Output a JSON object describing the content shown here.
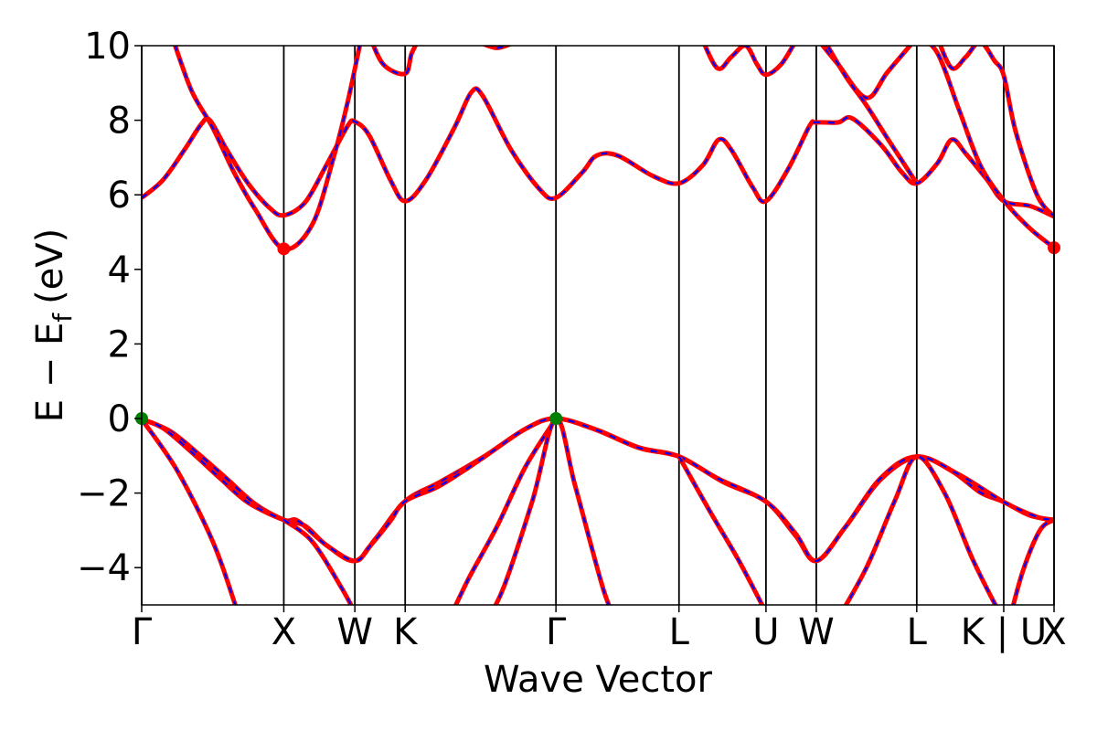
{
  "chart_data": {
    "type": "line",
    "title": "",
    "xlabel": "Wave Vector",
    "ylabel": "E − E",
    "ylabel_subscript": "f",
    "ylabel_unit": "(eV)",
    "ylim": [
      -5,
      10
    ],
    "yticks": [
      10,
      8,
      6,
      4,
      2,
      0,
      -2,
      -4
    ],
    "ytick_labels": [
      "10",
      "8",
      "6",
      "4",
      "2",
      "0",
      "−2",
      "−4"
    ],
    "kpath": [
      {
        "label": "Γ",
        "x": 0.0
      },
      {
        "label": "X",
        "x": 1.0
      },
      {
        "label": "W",
        "x": 1.5
      },
      {
        "label": "K",
        "x": 1.854
      },
      {
        "label": "Γ",
        "x": 2.915
      },
      {
        "label": "L",
        "x": 3.781
      },
      {
        "label": "U",
        "x": 4.393
      },
      {
        "label": "W",
        "x": 4.747
      },
      {
        "label": "L",
        "x": 5.454
      },
      {
        "label": "K | U",
        "x": 6.066
      },
      {
        "label": "X",
        "x": 6.42
      }
    ],
    "xlim": [
      0,
      6.42
    ],
    "colors": {
      "line": "#ff0000",
      "dash": "#0000ff",
      "cbm": "#ff0000",
      "vbm": "#008000",
      "axis": "#000000"
    },
    "series": [
      {
        "points": [
          [
            0.0,
            -0.02
          ],
          [
            0.2,
            -0.34
          ],
          [
            0.4,
            -0.95
          ],
          [
            0.6,
            -1.62
          ],
          [
            0.8,
            -2.3
          ],
          [
            1.0,
            -2.72
          ],
          [
            1.15,
            -2.88
          ],
          [
            1.3,
            -3.4
          ],
          [
            1.5,
            -3.82
          ],
          [
            1.65,
            -3.2
          ],
          [
            1.854,
            -2.22
          ],
          [
            2.1,
            -1.7
          ],
          [
            2.4,
            -1.04
          ],
          [
            2.7,
            -0.28
          ],
          [
            2.915,
            0.0
          ],
          [
            3.2,
            -0.3
          ],
          [
            3.5,
            -0.78
          ],
          [
            3.781,
            -1.02
          ],
          [
            4.1,
            -1.72
          ],
          [
            4.393,
            -2.23
          ],
          [
            4.6,
            -3.14
          ],
          [
            4.747,
            -3.82
          ],
          [
            4.95,
            -2.92
          ],
          [
            5.2,
            -1.64
          ],
          [
            5.454,
            -1.03
          ],
          [
            5.7,
            -1.41
          ],
          [
            5.9,
            -1.98
          ],
          [
            6.066,
            -2.24
          ],
          [
            6.25,
            -2.6
          ],
          [
            6.42,
            -2.72
          ]
        ]
      },
      {
        "points": [
          [
            0.0,
            -0.02
          ],
          [
            0.15,
            -0.26
          ],
          [
            0.35,
            -0.9
          ],
          [
            0.55,
            -1.6
          ],
          [
            0.75,
            -2.26
          ],
          [
            1.0,
            -2.72
          ],
          [
            1.1,
            -2.75
          ],
          [
            1.3,
            -3.4
          ],
          [
            1.5,
            -3.82
          ],
          [
            1.6,
            -3.45
          ],
          [
            1.75,
            -2.75
          ],
          [
            1.854,
            -2.22
          ],
          [
            2.1,
            -1.8
          ],
          [
            2.4,
            -1.06
          ],
          [
            2.7,
            -0.28
          ],
          [
            2.915,
            0.0
          ],
          [
            3.2,
            -0.31
          ],
          [
            3.5,
            -0.79
          ],
          [
            3.781,
            -1.02
          ],
          [
            4.05,
            -1.6
          ],
          [
            4.393,
            -2.23
          ],
          [
            4.6,
            -3.08
          ],
          [
            4.747,
            -3.82
          ],
          [
            4.95,
            -2.92
          ],
          [
            5.2,
            -1.6
          ],
          [
            5.454,
            -1.02
          ],
          [
            5.75,
            -1.5
          ],
          [
            6.066,
            -2.24
          ],
          [
            6.3,
            -2.64
          ],
          [
            6.42,
            -2.72
          ]
        ]
      },
      {
        "points": [
          [
            0.0,
            -0.02
          ],
          [
            0.25,
            -1.4
          ],
          [
            0.5,
            -3.3
          ],
          [
            0.65,
            -4.9
          ],
          [
            0.7,
            -5.5
          ]
        ]
      },
      {
        "points": [
          [
            1.0,
            -2.72
          ],
          [
            1.2,
            -3.3
          ],
          [
            1.4,
            -4.5
          ],
          [
            1.5,
            -5.2
          ]
        ]
      },
      {
        "points": [
          [
            2.15,
            -5.5
          ],
          [
            2.3,
            -4.3
          ],
          [
            2.5,
            -2.9
          ],
          [
            2.7,
            -1.3
          ],
          [
            2.915,
            0.0
          ]
        ]
      },
      {
        "points": [
          [
            2.42,
            -5.5
          ],
          [
            2.55,
            -4.5
          ],
          [
            2.75,
            -2.2
          ],
          [
            2.915,
            0.0
          ],
          [
            3.05,
            -1.8
          ],
          [
            3.25,
            -4.6
          ],
          [
            3.35,
            -5.5
          ]
        ]
      },
      {
        "points": [
          [
            3.781,
            -1.02
          ],
          [
            4.0,
            -2.5
          ],
          [
            4.2,
            -3.8
          ],
          [
            4.393,
            -5.2
          ]
        ]
      },
      {
        "points": [
          [
            4.88,
            -5.5
          ],
          [
            5.1,
            -4.0
          ],
          [
            5.3,
            -2.2
          ],
          [
            5.454,
            -1.02
          ],
          [
            5.65,
            -2.0
          ],
          [
            5.85,
            -3.8
          ],
          [
            6.05,
            -5.3
          ],
          [
            6.1,
            -5.5
          ]
        ]
      },
      {
        "points": [
          [
            6.1,
            -5.5
          ],
          [
            6.2,
            -4.1
          ],
          [
            6.32,
            -3.0
          ],
          [
            6.42,
            -2.72
          ]
        ]
      },
      {
        "points": [
          [
            0.0,
            5.92
          ],
          [
            0.15,
            6.4
          ],
          [
            0.3,
            7.2
          ],
          [
            0.42,
            7.9
          ],
          [
            0.48,
            8.0
          ],
          [
            0.6,
            7.2
          ],
          [
            0.75,
            6.3
          ],
          [
            0.9,
            5.65
          ],
          [
            1.0,
            5.45
          ],
          [
            1.15,
            5.8
          ],
          [
            1.3,
            6.8
          ],
          [
            1.45,
            7.85
          ],
          [
            1.5,
            7.96
          ],
          [
            1.6,
            7.6
          ],
          [
            1.75,
            6.4
          ],
          [
            1.854,
            5.83
          ],
          [
            2.0,
            6.4
          ],
          [
            2.2,
            7.8
          ],
          [
            2.32,
            8.75
          ],
          [
            2.4,
            8.65
          ],
          [
            2.6,
            7.2
          ],
          [
            2.8,
            6.15
          ],
          [
            2.915,
            5.92
          ],
          [
            3.1,
            6.6
          ],
          [
            3.2,
            7.05
          ],
          [
            3.35,
            7.05
          ],
          [
            3.6,
            6.5
          ],
          [
            3.781,
            6.31
          ],
          [
            3.95,
            6.8
          ],
          [
            4.06,
            7.48
          ],
          [
            4.15,
            7.2
          ],
          [
            4.3,
            6.2
          ],
          [
            4.393,
            5.83
          ],
          [
            4.55,
            6.7
          ],
          [
            4.7,
            7.85
          ],
          [
            4.747,
            7.94
          ],
          [
            4.9,
            7.94
          ],
          [
            5.0,
            8.05
          ],
          [
            5.2,
            7.35
          ],
          [
            5.35,
            6.6
          ],
          [
            5.454,
            6.31
          ],
          [
            5.6,
            6.85
          ],
          [
            5.7,
            7.48
          ],
          [
            5.8,
            7.1
          ],
          [
            5.95,
            6.4
          ],
          [
            6.066,
            5.83
          ],
          [
            6.25,
            5.7
          ],
          [
            6.42,
            5.42
          ]
        ]
      },
      {
        "points": [
          [
            0.2,
            10.4
          ],
          [
            0.35,
            8.8
          ],
          [
            0.5,
            7.8
          ],
          [
            0.65,
            6.6
          ],
          [
            0.8,
            5.6
          ],
          [
            1.0,
            4.55
          ],
          [
            1.2,
            5.2
          ],
          [
            1.35,
            7.0
          ],
          [
            1.45,
            8.5
          ],
          [
            1.55,
            10.3
          ]
        ]
      },
      {
        "points": [
          [
            1.6,
            10.3
          ],
          [
            1.7,
            9.5
          ],
          [
            1.854,
            9.25
          ],
          [
            1.9,
            9.8
          ],
          [
            1.97,
            10.3
          ]
        ]
      },
      {
        "points": [
          [
            2.4,
            10.05
          ],
          [
            2.5,
            9.94
          ],
          [
            2.6,
            10.05
          ]
        ]
      },
      {
        "points": [
          [
            3.93,
            10.3
          ],
          [
            4.05,
            9.4
          ],
          [
            4.15,
            9.7
          ],
          [
            4.25,
            10.0
          ],
          [
            4.33,
            9.5
          ],
          [
            4.393,
            9.22
          ],
          [
            4.5,
            9.5
          ],
          [
            4.6,
            10.1
          ],
          [
            4.65,
            10.3
          ]
        ]
      },
      {
        "points": [
          [
            4.75,
            10.2
          ],
          [
            4.9,
            9.5
          ],
          [
            5.1,
            8.6
          ],
          [
            5.25,
            9.3
          ],
          [
            5.454,
            10.2
          ],
          [
            5.5,
            10.3
          ]
        ]
      },
      {
        "points": [
          [
            4.78,
            10.3
          ],
          [
            4.95,
            9.2
          ],
          [
            5.1,
            8.4
          ],
          [
            5.25,
            7.5
          ],
          [
            5.454,
            6.31
          ]
        ]
      },
      {
        "points": [
          [
            5.6,
            10.2
          ],
          [
            5.7,
            9.4
          ],
          [
            5.8,
            9.7
          ],
          [
            5.9,
            10.1
          ],
          [
            6.0,
            9.6
          ],
          [
            6.066,
            9.2
          ],
          [
            6.15,
            7.7
          ],
          [
            6.3,
            6.0
          ],
          [
            6.42,
            5.42
          ]
        ]
      },
      {
        "points": [
          [
            5.454,
            10.3
          ],
          [
            5.6,
            9.8
          ],
          [
            5.75,
            8.3
          ],
          [
            5.9,
            6.8
          ],
          [
            6.066,
            5.85
          ],
          [
            6.25,
            5.1
          ],
          [
            6.42,
            4.58
          ]
        ]
      }
    ],
    "markers": [
      {
        "name": "cbm",
        "points": [
          [
            1.0,
            4.55
          ],
          [
            6.42,
            4.58
          ]
        ]
      },
      {
        "name": "vbm",
        "points": [
          [
            0.0,
            0.0
          ],
          [
            2.915,
            0.0
          ]
        ]
      }
    ]
  }
}
